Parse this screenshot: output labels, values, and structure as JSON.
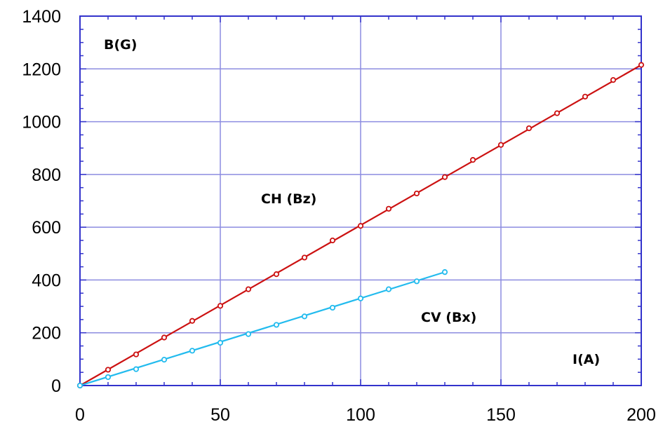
{
  "chart_data": {
    "type": "line",
    "title": "",
    "xlim": [
      0,
      200
    ],
    "ylim": [
      0,
      1400
    ],
    "x_ticks": [
      "0",
      "50",
      "100",
      "150",
      "200"
    ],
    "y_ticks": [
      "0",
      "200",
      "400",
      "600",
      "800",
      "1000",
      "1200",
      "1400"
    ],
    "grid": true,
    "annotations": {
      "ylabel": "B(G)",
      "xlabel": "I(A)",
      "ch_label": "CH (Bz)",
      "cv_label": "CV (Bx)"
    },
    "series": [
      {
        "name": "CH (Bz)",
        "color": "#cc1111",
        "x": [
          0,
          10,
          20,
          30,
          40,
          50,
          60,
          70,
          80,
          90,
          100,
          110,
          120,
          130,
          140,
          150,
          160,
          170,
          180,
          190,
          200
        ],
        "y": [
          0,
          60,
          118,
          182,
          245,
          302,
          365,
          422,
          485,
          550,
          605,
          670,
          728,
          790,
          855,
          912,
          975,
          1032,
          1095,
          1158,
          1215
        ]
      },
      {
        "name": "CV (Bx)",
        "color": "#22bbee",
        "x": [
          0,
          10,
          20,
          30,
          40,
          50,
          60,
          70,
          80,
          90,
          100,
          110,
          120,
          130
        ],
        "y": [
          0,
          32,
          62,
          98,
          132,
          162,
          195,
          230,
          262,
          295,
          330,
          365,
          395,
          430
        ]
      }
    ]
  }
}
